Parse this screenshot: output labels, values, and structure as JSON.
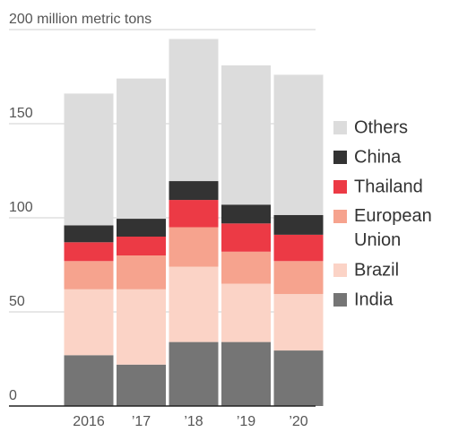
{
  "chart_data": {
    "type": "bar",
    "stacked": true,
    "categories": [
      "2016",
      "’17",
      "’18",
      "’19",
      "’20"
    ],
    "series": [
      {
        "name": "India",
        "color": "#757575",
        "values": [
          27,
          22,
          34,
          34,
          29.5
        ]
      },
      {
        "name": "Brazil",
        "color": "#fbd3c6",
        "values": [
          35,
          40,
          40,
          31,
          30
        ]
      },
      {
        "name": "European Union",
        "color": "#f6a38e",
        "values": [
          15,
          18,
          21,
          17,
          17.5
        ]
      },
      {
        "name": "Thailand",
        "color": "#ec3a45",
        "values": [
          10,
          10,
          14.5,
          15,
          14
        ]
      },
      {
        "name": "China",
        "color": "#333333",
        "values": [
          9,
          9.5,
          10,
          10,
          10.5
        ]
      },
      {
        "name": "Others",
        "color": "#dcdcdc",
        "values": [
          70,
          74.5,
          75.5,
          74,
          74.5
        ]
      }
    ],
    "ylim": [
      0,
      200
    ],
    "yticks": [
      0,
      50,
      100,
      150,
      {
        "value": 200,
        "label": "200 million metric tons"
      }
    ],
    "grid": true,
    "legend": "right"
  }
}
